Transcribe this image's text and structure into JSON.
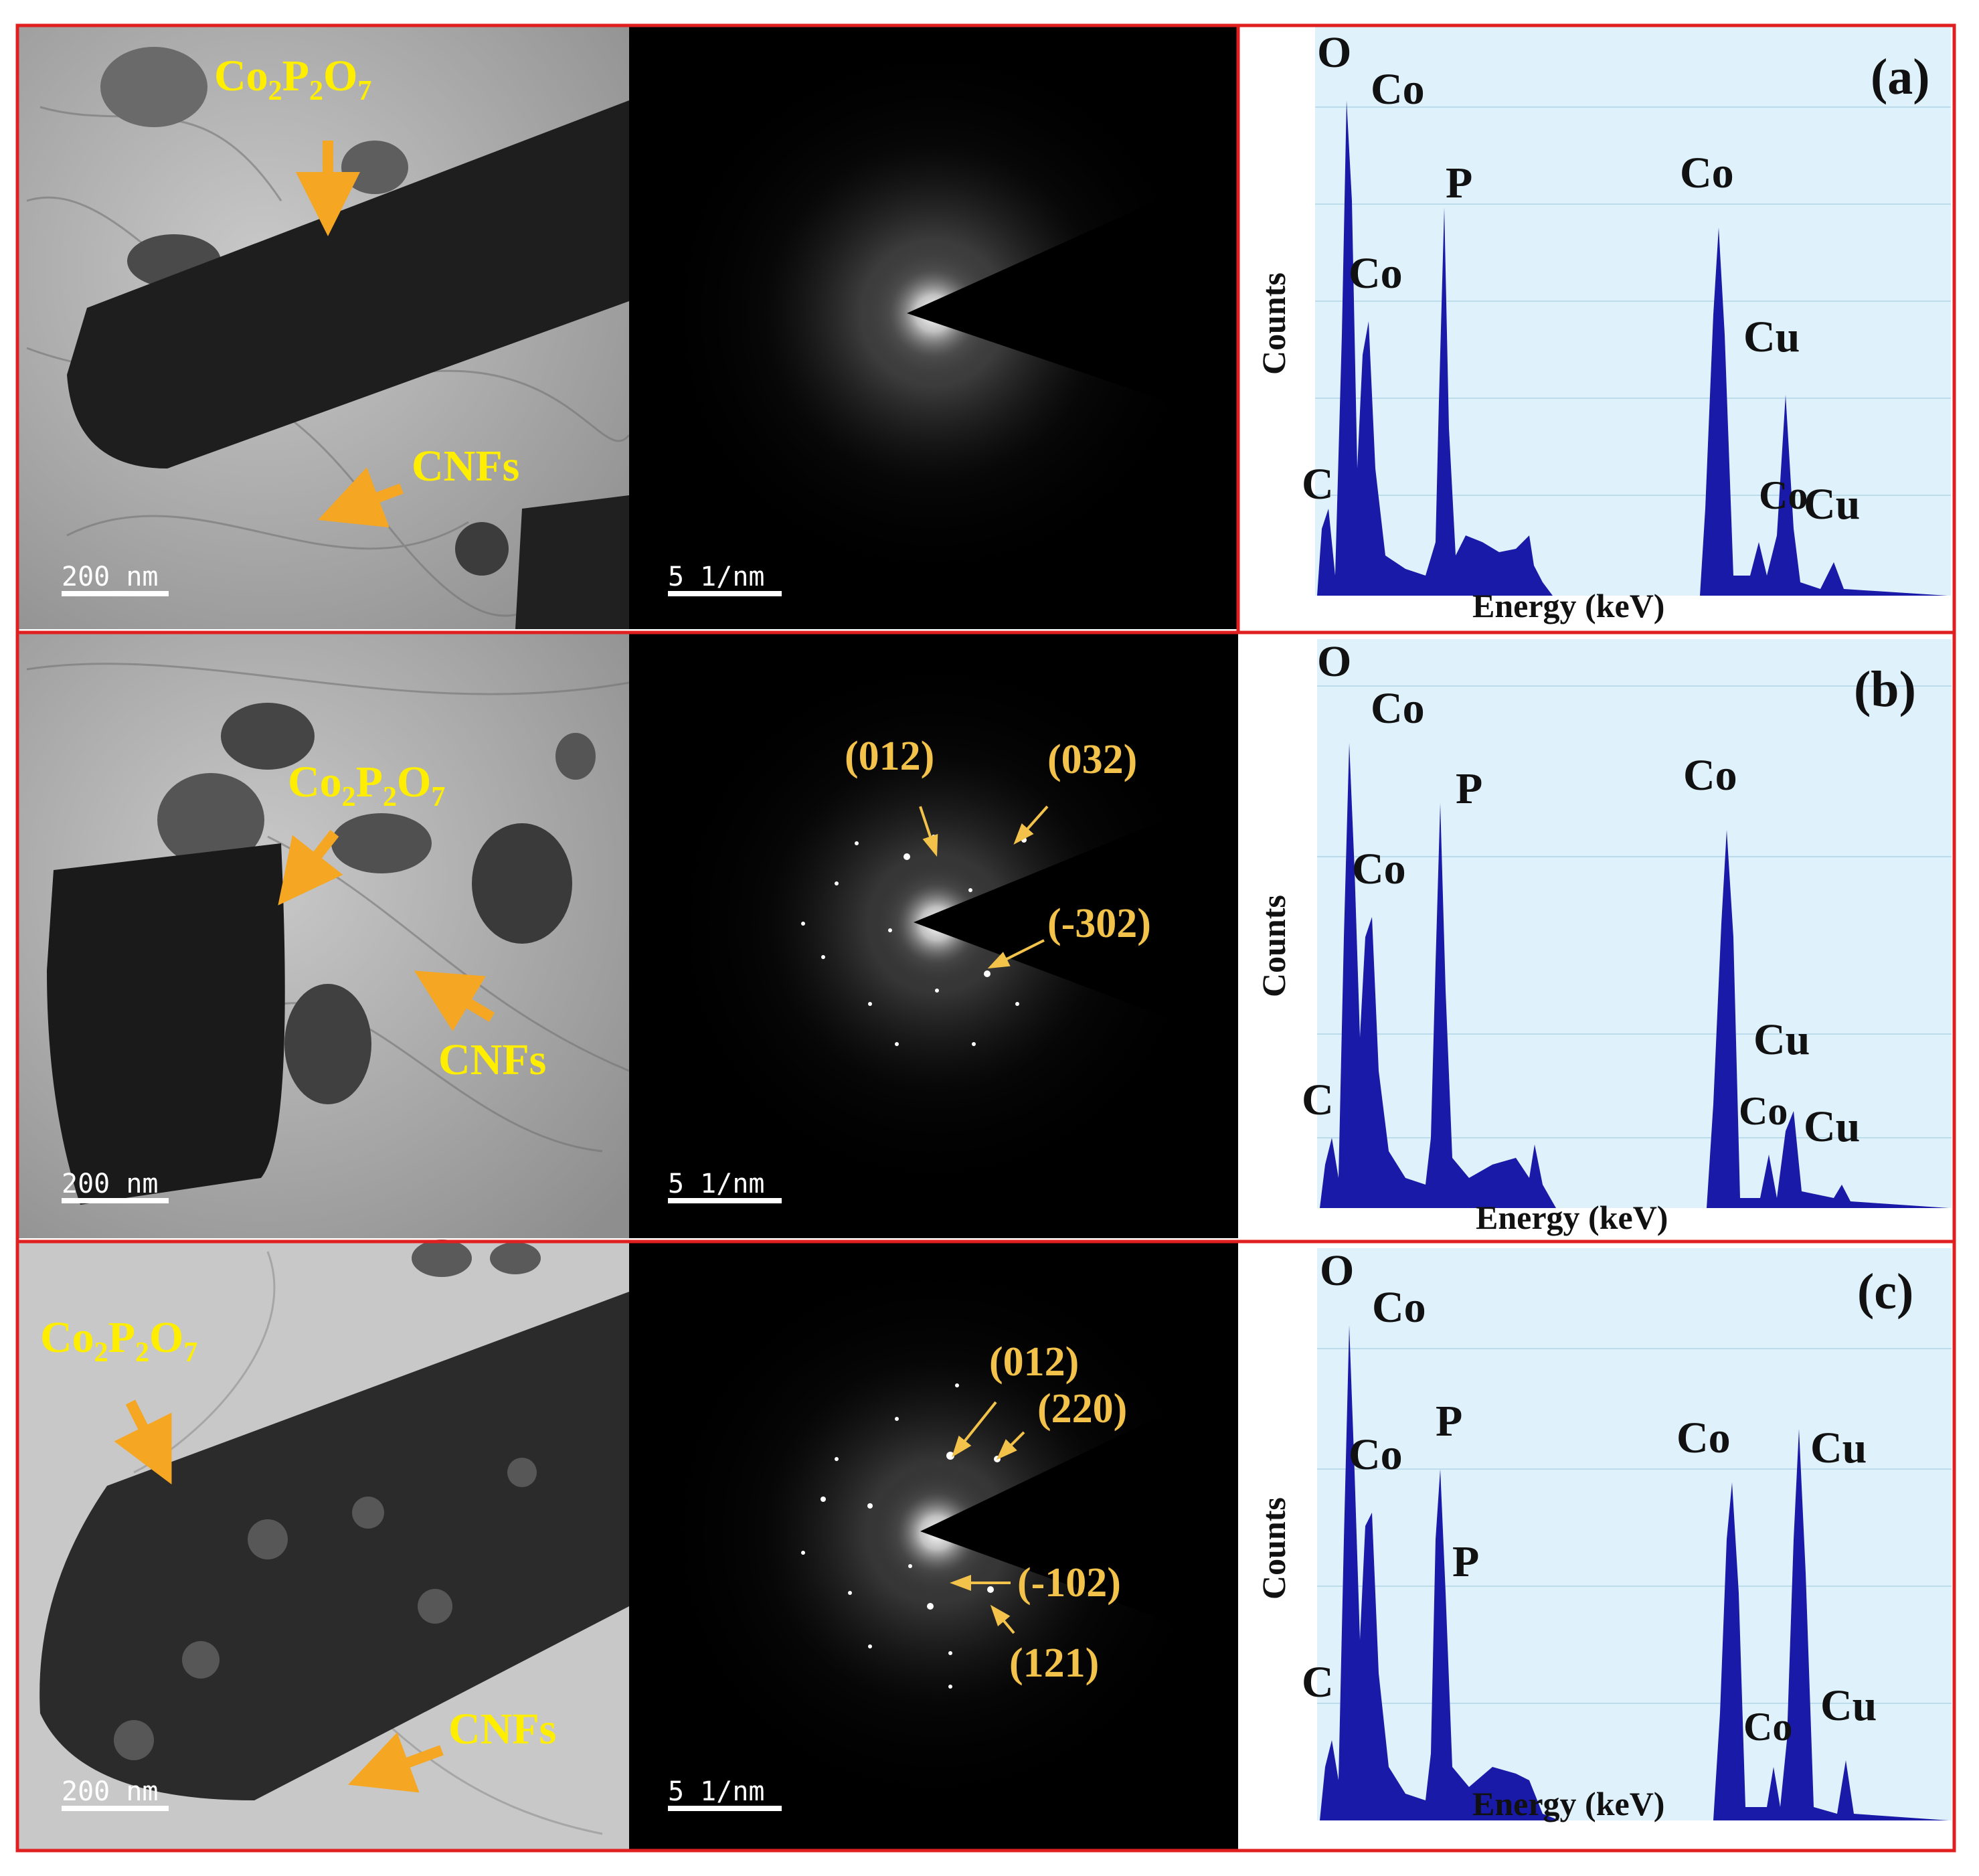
{
  "rows": [
    {
      "panel_label": "(a)",
      "tem": {
        "annotations": [
          "Co2P2O7",
          "CNFs"
        ],
        "scale_bar": "200 nm"
      },
      "saed": {
        "scale_bar": "5 1/nm",
        "spot_labels": []
      },
      "eds": {
        "ylabel": "Counts",
        "xlabel": "Energy (keV)",
        "peak_labels": [
          "O",
          "Co",
          "P",
          "Co",
          "Co",
          "Cu",
          "C",
          "Co",
          "Cu"
        ]
      }
    },
    {
      "panel_label": "(b)",
      "tem": {
        "annotations": [
          "Co2P2O7",
          "CNFs"
        ],
        "scale_bar": "200 nm"
      },
      "saed": {
        "scale_bar": "5 1/nm",
        "spot_labels": [
          "(012)",
          "(032)",
          "(-302)"
        ]
      },
      "eds": {
        "ylabel": "Counts",
        "xlabel": "Energy (keV)",
        "peak_labels": [
          "O",
          "Co",
          "P",
          "Co",
          "Co",
          "Cu",
          "C",
          "Co",
          "Cu"
        ]
      }
    },
    {
      "panel_label": "(c)",
      "tem": {
        "annotations": [
          "Co2P2O7",
          "CNFs"
        ],
        "scale_bar": "200 nm"
      },
      "saed": {
        "scale_bar": "5 1/nm",
        "spot_labels": [
          "(012)",
          "(220)",
          "(-102)",
          "(121)"
        ]
      },
      "eds": {
        "ylabel": "Counts",
        "xlabel": "Energy (keV)",
        "peak_labels": [
          "O",
          "Co",
          "Co",
          "P",
          "P",
          "Co",
          "Cu",
          "C",
          "Co",
          "Cu"
        ]
      }
    }
  ],
  "colors": {
    "frame": "#e02020",
    "annotation_yellow": "#ffee00",
    "saed_label": "#f2c24a",
    "arrow_orange": "#f5a623",
    "eds_background": "#dff1fb",
    "eds_fill": "#1a1aa8"
  }
}
